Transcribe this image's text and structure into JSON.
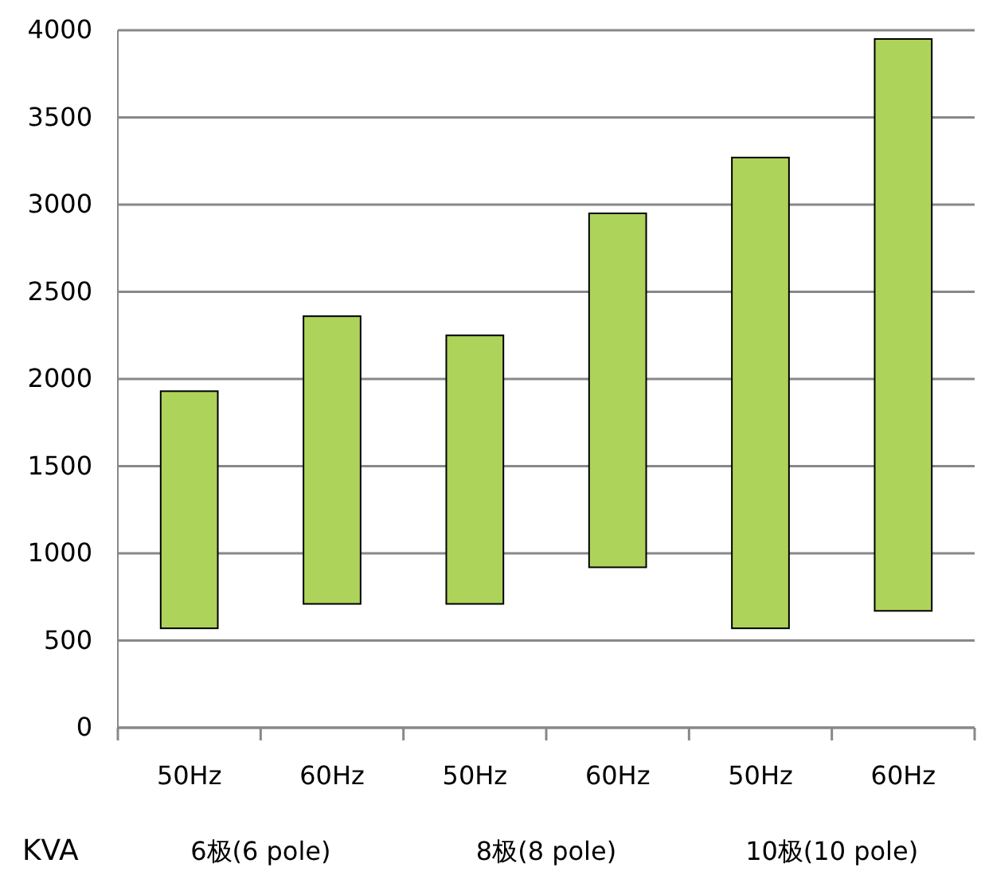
{
  "chart_data": {
    "type": "bar",
    "categories": [
      "50Hz",
      "60Hz",
      "50Hz",
      "60Hz",
      "50Hz",
      "60Hz"
    ],
    "base": [
      570,
      710,
      710,
      920,
      570,
      670
    ],
    "values": [
      1360,
      1650,
      1540,
      2030,
      2700,
      3280
    ],
    "color": "#aed35a",
    "ylabel": "KVA",
    "annotations": [
      "6极(6 pole)",
      "8极(8 pole)",
      "10极(10 pole)"
    ],
    "ylim": [
      0,
      4000
    ],
    "yticks": [
      0,
      500,
      1000,
      1500,
      2000,
      2500,
      3000,
      3500,
      4000
    ],
    "grid": "y"
  }
}
